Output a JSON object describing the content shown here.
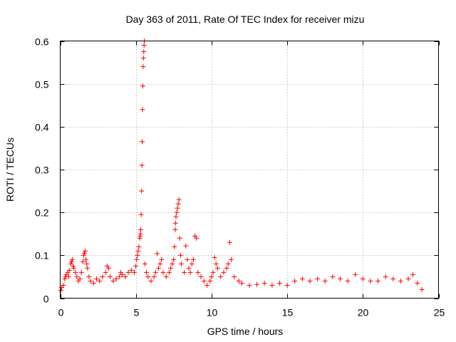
{
  "chart_data": {
    "type": "scatter",
    "title": "Day 363 of 2011, Rate Of TEC Index for receiver mizu",
    "xlabel": "GPS time / hours",
    "ylabel": "ROTI / TECUs",
    "xlim": [
      0,
      25
    ],
    "ylim": [
      0,
      0.6
    ],
    "xticks": [
      0,
      5,
      10,
      15,
      20,
      25
    ],
    "yticks": [
      0,
      0.1,
      0.2,
      0.3,
      0.4,
      0.5,
      0.6
    ],
    "xtick_labels": [
      "0",
      "5",
      "10",
      "15",
      "20",
      "25"
    ],
    "ytick_labels": [
      "0",
      "0.1",
      "0.2",
      "0.3",
      "0.4",
      "0.5",
      "0.6"
    ],
    "grid": true,
    "marker": "+",
    "color": "#ff0000",
    "series": [
      {
        "name": "ROTI",
        "points": [
          [
            0.05,
            0.018
          ],
          [
            0.1,
            0.025
          ],
          [
            0.2,
            0.03
          ],
          [
            0.3,
            0.045
          ],
          [
            0.35,
            0.05
          ],
          [
            0.4,
            0.055
          ],
          [
            0.5,
            0.06
          ],
          [
            0.55,
            0.05
          ],
          [
            0.6,
            0.065
          ],
          [
            0.7,
            0.08
          ],
          [
            0.75,
            0.085
          ],
          [
            0.8,
            0.09
          ],
          [
            0.85,
            0.075
          ],
          [
            0.9,
            0.07
          ],
          [
            1.0,
            0.06
          ],
          [
            1.1,
            0.05
          ],
          [
            1.2,
            0.04
          ],
          [
            1.3,
            0.045
          ],
          [
            1.4,
            0.06
          ],
          [
            1.5,
            0.085
          ],
          [
            1.55,
            0.1
          ],
          [
            1.6,
            0.105
          ],
          [
            1.65,
            0.11
          ],
          [
            1.7,
            0.09
          ],
          [
            1.75,
            0.08
          ],
          [
            1.8,
            0.07
          ],
          [
            1.9,
            0.05
          ],
          [
            2.0,
            0.04
          ],
          [
            2.2,
            0.035
          ],
          [
            2.4,
            0.045
          ],
          [
            2.6,
            0.04
          ],
          [
            2.8,
            0.05
          ],
          [
            3.0,
            0.06
          ],
          [
            3.1,
            0.075
          ],
          [
            3.2,
            0.07
          ],
          [
            3.3,
            0.05
          ],
          [
            3.5,
            0.04
          ],
          [
            3.7,
            0.045
          ],
          [
            3.9,
            0.05
          ],
          [
            4.0,
            0.06
          ],
          [
            4.1,
            0.055
          ],
          [
            4.3,
            0.05
          ],
          [
            4.5,
            0.06
          ],
          [
            4.7,
            0.065
          ],
          [
            4.9,
            0.06
          ],
          [
            5.0,
            0.075
          ],
          [
            5.05,
            0.09
          ],
          [
            5.1,
            0.1
          ],
          [
            5.15,
            0.11
          ],
          [
            5.2,
            0.12
          ],
          [
            5.25,
            0.14
          ],
          [
            5.28,
            0.145
          ],
          [
            5.3,
            0.15
          ],
          [
            5.32,
            0.16
          ],
          [
            5.35,
            0.195
          ],
          [
            5.38,
            0.25
          ],
          [
            5.4,
            0.31
          ],
          [
            5.42,
            0.365
          ],
          [
            5.44,
            0.44
          ],
          [
            5.46,
            0.495
          ],
          [
            5.48,
            0.54
          ],
          [
            5.5,
            0.56
          ],
          [
            5.52,
            0.575
          ],
          [
            5.54,
            0.59
          ],
          [
            5.56,
            0.6
          ],
          [
            5.6,
            0.08
          ],
          [
            5.7,
            0.06
          ],
          [
            5.8,
            0.05
          ],
          [
            6.0,
            0.04
          ],
          [
            6.2,
            0.05
          ],
          [
            6.3,
            0.06
          ],
          [
            6.4,
            0.104
          ],
          [
            6.5,
            0.07
          ],
          [
            6.6,
            0.08
          ],
          [
            6.7,
            0.09
          ],
          [
            6.8,
            0.06
          ],
          [
            7.0,
            0.05
          ],
          [
            7.2,
            0.06
          ],
          [
            7.3,
            0.07
          ],
          [
            7.4,
            0.08
          ],
          [
            7.5,
            0.09
          ],
          [
            7.55,
            0.12
          ],
          [
            7.6,
            0.16
          ],
          [
            7.62,
            0.175
          ],
          [
            7.65,
            0.19
          ],
          [
            7.7,
            0.2
          ],
          [
            7.75,
            0.21
          ],
          [
            7.8,
            0.22
          ],
          [
            7.85,
            0.23
          ],
          [
            7.9,
            0.14
          ],
          [
            7.95,
            0.1
          ],
          [
            8.0,
            0.08
          ],
          [
            8.2,
            0.06
          ],
          [
            8.3,
            0.122
          ],
          [
            8.4,
            0.09
          ],
          [
            8.5,
            0.07
          ],
          [
            8.6,
            0.06
          ],
          [
            8.7,
            0.08
          ],
          [
            8.8,
            0.09
          ],
          [
            8.9,
            0.145
          ],
          [
            9.0,
            0.14
          ],
          [
            9.1,
            0.06
          ],
          [
            9.3,
            0.05
          ],
          [
            9.5,
            0.04
          ],
          [
            9.7,
            0.03
          ],
          [
            9.9,
            0.04
          ],
          [
            10.0,
            0.05
          ],
          [
            10.1,
            0.06
          ],
          [
            10.2,
            0.095
          ],
          [
            10.3,
            0.08
          ],
          [
            10.4,
            0.07
          ],
          [
            10.6,
            0.05
          ],
          [
            10.8,
            0.06
          ],
          [
            11.0,
            0.07
          ],
          [
            11.1,
            0.08
          ],
          [
            11.2,
            0.13
          ],
          [
            11.3,
            0.09
          ],
          [
            11.5,
            0.05
          ],
          [
            11.8,
            0.04
          ],
          [
            12.0,
            0.035
          ],
          [
            12.5,
            0.03
          ],
          [
            13.0,
            0.032
          ],
          [
            13.5,
            0.035
          ],
          [
            14.0,
            0.03
          ],
          [
            14.5,
            0.035
          ],
          [
            15.0,
            0.03
          ],
          [
            15.5,
            0.04
          ],
          [
            16.0,
            0.045
          ],
          [
            16.5,
            0.04
          ],
          [
            17.0,
            0.045
          ],
          [
            17.5,
            0.04
          ],
          [
            18.0,
            0.05
          ],
          [
            18.5,
            0.045
          ],
          [
            19.0,
            0.04
          ],
          [
            19.5,
            0.055
          ],
          [
            20.0,
            0.045
          ],
          [
            20.5,
            0.04
          ],
          [
            21.0,
            0.04
          ],
          [
            21.5,
            0.05
          ],
          [
            22.0,
            0.045
          ],
          [
            22.5,
            0.04
          ],
          [
            23.0,
            0.045
          ],
          [
            23.3,
            0.055
          ],
          [
            23.6,
            0.035
          ],
          [
            23.9,
            0.02
          ]
        ]
      }
    ]
  }
}
